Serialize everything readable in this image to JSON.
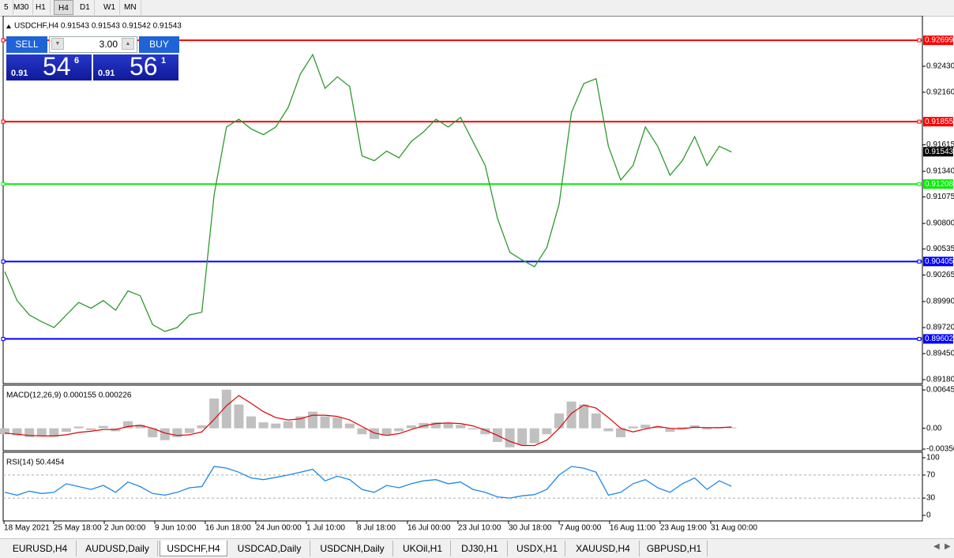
{
  "toolbar": {
    "timeframes": [
      "5",
      "M30",
      "H1",
      "H4",
      "D1",
      "W1",
      "MN"
    ],
    "active": 3
  },
  "trade_panel": {
    "sell": "SELL",
    "buy": "BUY",
    "quantity": "3.00",
    "bid": {
      "prefix": "0.91",
      "main": "54",
      "sup": "6"
    },
    "ask": {
      "prefix": "0.91",
      "main": "56",
      "sup": "1"
    }
  },
  "chart_data": [
    {
      "type": "line",
      "title": "USDCHF,H4  0.91543 0.91543 0.91542 0.91543",
      "x": [
        0,
        1,
        2,
        3,
        4,
        5,
        6,
        7,
        8,
        9,
        10,
        11,
        12,
        13,
        14,
        15,
        16,
        17,
        18,
        19,
        20,
        21,
        22,
        23,
        24,
        25,
        26,
        27,
        28,
        29,
        30,
        31,
        32,
        33,
        34,
        35,
        36,
        37,
        38,
        39,
        40,
        41,
        42,
        43,
        44,
        45,
        46,
        47,
        48,
        49,
        50,
        51,
        52,
        53,
        54,
        55,
        56,
        57,
        58,
        59
      ],
      "values": [
        0.903,
        0.9,
        0.8985,
        0.8978,
        0.8972,
        0.8985,
        0.8998,
        0.8992,
        0.9,
        0.899,
        0.901,
        0.9005,
        0.8975,
        0.8968,
        0.8972,
        0.8985,
        0.8988,
        0.911,
        0.918,
        0.9188,
        0.9178,
        0.9172,
        0.918,
        0.92,
        0.9235,
        0.9255,
        0.922,
        0.9232,
        0.9222,
        0.915,
        0.9145,
        0.9155,
        0.9148,
        0.9165,
        0.9175,
        0.9188,
        0.918,
        0.919,
        0.9165,
        0.914,
        0.9085,
        0.905,
        0.9042,
        0.9035,
        0.9055,
        0.91,
        0.9195,
        0.9225,
        0.923,
        0.916,
        0.9125,
        0.914,
        0.918,
        0.916,
        0.913,
        0.9145,
        0.917,
        0.914,
        0.916,
        0.9154
      ],
      "color": "#2e9a2e",
      "xlim": [
        -0.128,
        74.49
      ],
      "ylim": [
        0.89139,
        0.92953
      ],
      "yticks": [
        {
          "value": 0.9243,
          "label": "0.92430"
        },
        {
          "value": 0.9216,
          "label": "0.92160"
        },
        {
          "value": 0.91615,
          "label": "0.91615"
        },
        {
          "value": 0.9134,
          "label": "0.91340"
        },
        {
          "value": 0.91075,
          "label": "0.91075"
        },
        {
          "value": 0.908,
          "label": "0.90800"
        },
        {
          "value": 0.90535,
          "label": "0.90535"
        },
        {
          "value": 0.90265,
          "label": "0.90265"
        },
        {
          "value": 0.8999,
          "label": "0.89990"
        },
        {
          "value": 0.8972,
          "label": "0.89720"
        },
        {
          "value": 0.8945,
          "label": "0.89450"
        },
        {
          "value": 0.8918,
          "label": "0.89180"
        }
      ],
      "xticks": [
        {
          "value": -0.06,
          "label": "18 May 2021"
        },
        {
          "value": 3.97,
          "label": "25 May 18:00"
        },
        {
          "value": 8.08,
          "label": "2 Jun 00:00"
        },
        {
          "value": 12.18,
          "label": "9 Jun 10:00"
        },
        {
          "value": 16.28,
          "label": "16 Jun 18:00"
        },
        {
          "value": 20.38,
          "label": "24 Jun 00:00"
        },
        {
          "value": 24.49,
          "label": "1 Jul 10:00"
        },
        {
          "value": 28.59,
          "label": "8 Jul 18:00"
        },
        {
          "value": 32.69,
          "label": "16 Jul 00:00"
        },
        {
          "value": 36.79,
          "label": "23 Jul 10:00"
        },
        {
          "value": 40.9,
          "label": "30 Jul 18:00"
        },
        {
          "value": 45,
          "label": "7 Aug 00:00"
        },
        {
          "value": 49.1,
          "label": "16 Aug 11:00"
        },
        {
          "value": 53.2,
          "label": "23 Aug 19:00"
        },
        {
          "value": 57.31,
          "label": "31 Aug 00:00"
        }
      ],
      "hlines": [
        {
          "value": 0.92699,
          "color": "#ff0000"
        },
        {
          "value": 0.91855,
          "color": "#ff0000"
        },
        {
          "value": 0.91208,
          "color": "#00ee00"
        },
        {
          "value": 0.90405,
          "color": "#0000ff"
        },
        {
          "value": 0.89602,
          "color": "#0000ff"
        }
      ],
      "last_price": 0.91543
    },
    {
      "type": "bar",
      "title": "MACD(12,26,9) 0.000155 0.000226",
      "x": [
        0,
        1,
        2,
        3,
        4,
        5,
        6,
        7,
        8,
        9,
        10,
        11,
        12,
        13,
        14,
        15,
        16,
        17,
        18,
        19,
        20,
        21,
        22,
        23,
        24,
        25,
        26,
        27,
        28,
        29,
        30,
        31,
        32,
        33,
        34,
        35,
        36,
        37,
        38,
        39,
        40,
        41,
        42,
        43,
        44,
        45,
        46,
        47,
        48,
        49,
        50,
        51,
        52,
        53,
        54,
        55,
        56,
        57,
        58,
        59
      ],
      "values": [
        -0.001,
        -0.0012,
        -0.0015,
        -0.0013,
        -0.0014,
        -0.0006,
        0.0003,
        -0.0003,
        0.0004,
        -0.0005,
        0.0012,
        0.0006,
        -0.0015,
        -0.002,
        -0.0015,
        -0.0008,
        0.0005,
        0.005,
        0.0065,
        0.004,
        0.002,
        0.001,
        0.0008,
        0.0012,
        0.002,
        0.0028,
        0.002,
        0.0018,
        0.0008,
        -0.001,
        -0.0018,
        -0.0012,
        -0.0005,
        0.0005,
        0.0009,
        0.001,
        0.0008,
        0.0006,
        -0.0002,
        -0.001,
        -0.0023,
        -0.0032,
        -0.0028,
        -0.0025,
        -0.001,
        0.0025,
        0.0045,
        0.004,
        0.0025,
        -0.0005,
        -0.0015,
        0.0003,
        0.0006,
        0.0003,
        -0.0006,
        0.0002,
        0.0005,
        -0.0002,
        0.0002,
        0.000155
      ],
      "color": "#c0c0c0",
      "signal": {
        "values": [
          -0.0008,
          -0.001,
          -0.0012,
          -0.0013,
          -0.0013,
          -0.0011,
          -0.0007,
          -0.0005,
          -0.0002,
          -0.0002,
          0.0003,
          0.0005,
          0,
          -0.0008,
          -0.0012,
          -0.0011,
          -0.0006,
          0.0015,
          0.0038,
          0.0055,
          0.0042,
          0.0028,
          0.0018,
          0.0014,
          0.0016,
          0.0022,
          0.0022,
          0.002,
          0.0014,
          0.0003,
          -0.0008,
          -0.0012,
          -0.0009,
          -0.0002,
          0.0004,
          0.0008,
          0.0009,
          0.0008,
          0.0004,
          -0.0003,
          -0.0012,
          -0.0022,
          -0.0029,
          -0.0029,
          -0.002,
          0,
          0.0025,
          0.0039,
          0.0034,
          0.0018,
          0,
          -0.0006,
          -0.0001,
          0.0003,
          0,
          -0.0001,
          0.0002,
          0.0001,
          0.0001,
          0.000226
        ],
        "color": "#e00000"
      },
      "xlim": [
        -0.128,
        74.49
      ],
      "ylim": [
        -0.003763,
        0.007257
      ],
      "yticks": [
        0.006451,
        {
          "value": 0,
          "label": "0.00"
        },
        -0.003504
      ]
    },
    {
      "type": "line",
      "title": "RSI(14) 50.4454",
      "x": [
        0,
        1,
        2,
        3,
        4,
        5,
        6,
        7,
        8,
        9,
        10,
        11,
        12,
        13,
        14,
        15,
        16,
        17,
        18,
        19,
        20,
        21,
        22,
        23,
        24,
        25,
        26,
        27,
        28,
        29,
        30,
        31,
        32,
        33,
        34,
        35,
        36,
        37,
        38,
        39,
        40,
        41,
        42,
        43,
        44,
        45,
        46,
        47,
        48,
        49,
        50,
        51,
        52,
        53,
        54,
        55,
        56,
        57,
        58,
        59
      ],
      "values": [
        40,
        35,
        42,
        38,
        40,
        55,
        50,
        45,
        52,
        40,
        58,
        50,
        38,
        35,
        40,
        48,
        50,
        85,
        82,
        75,
        65,
        62,
        66,
        70,
        75,
        80,
        60,
        68,
        62,
        45,
        40,
        52,
        48,
        55,
        60,
        62,
        55,
        58,
        45,
        40,
        32,
        30,
        34,
        36,
        45,
        70,
        85,
        82,
        75,
        35,
        40,
        55,
        62,
        48,
        40,
        55,
        65,
        45,
        60,
        50.4454
      ],
      "color": "#1e88e5",
      "xlim": [
        -0.128,
        74.49
      ],
      "ylim": [
        -9.6,
        109.6
      ],
      "yticks": [
        100,
        70,
        30,
        0
      ],
      "levels": [
        70,
        30
      ]
    }
  ],
  "tabs": [
    "EURUSD,H4",
    "AUDUSD,Daily",
    "USDCHF,H4",
    "USDCAD,Daily",
    "USDCNH,Daily",
    "UKOil,H1",
    "DJ30,H1",
    "USDX,H1",
    "XAUUSD,H4",
    "GBPUSD,H1"
  ],
  "active_tab": 2
}
